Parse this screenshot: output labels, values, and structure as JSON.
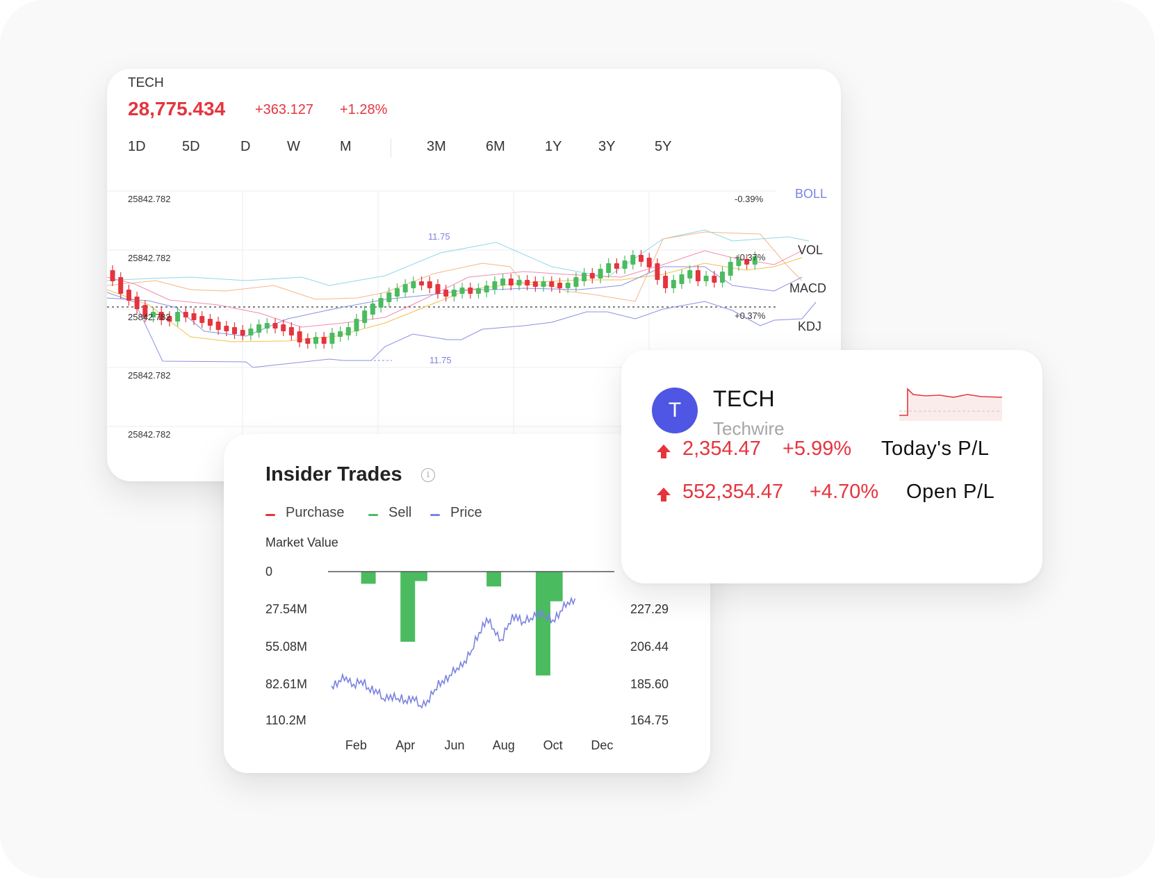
{
  "colors": {
    "up": "#e5343d",
    "down": "#4bbb5f",
    "accent": "#4f56e3",
    "price_line": "#7b82e0"
  },
  "chart": {
    "symbol": "TECH",
    "price": "28,775.434",
    "change": "+363.127",
    "change_pct": "+1.28%",
    "ranges_left": [
      "1D",
      "5D",
      "D",
      "W",
      "M"
    ],
    "ranges_right": [
      "3M",
      "6M",
      "1Y",
      "3Y",
      "5Y"
    ],
    "y_labels": [
      "25842.782",
      "25842.782",
      "25842.782",
      "25842.782",
      "25842.782"
    ],
    "right_labels": [
      "-0.39%",
      "+0.37%",
      "+0.37%"
    ],
    "annotation_high": "11.75",
    "annotation_low": "11.75",
    "indicators": [
      "BOLL",
      "VOL",
      "MACD",
      "KDJ"
    ]
  },
  "insider": {
    "title": "Insider Trades",
    "info_icon": "info-icon",
    "legend": [
      {
        "label": "Purchase",
        "color": "#e5343d"
      },
      {
        "label": "Sell",
        "color": "#4bbb5f"
      },
      {
        "label": "Price",
        "color": "#7b82e0"
      }
    ],
    "y_axis_title": "Market Value"
  },
  "chart_data": {
    "type": "bar",
    "y_left_ticks": [
      "0",
      "27.54M",
      "55.08M",
      "82.61M",
      "110.2M"
    ],
    "y_right_ticks": [
      "",
      "227.29",
      "206.44",
      "185.60",
      "164.75"
    ],
    "x_ticks": [
      "Feb",
      "Apr",
      "Jun",
      "Aug",
      "Oct",
      "Dec"
    ],
    "ylim_left": [
      0,
      110.2
    ],
    "ylim_right": [
      164.75,
      248.13
    ],
    "series": [
      {
        "name": "Sell",
        "type": "bar",
        "month_positions": [
          1.5,
          3.1,
          3.6,
          6.6,
          8.6,
          9.1
        ],
        "values": [
          9,
          52,
          7,
          11,
          77,
          22
        ]
      },
      {
        "name": "Price",
        "type": "line",
        "months": [
          0.0,
          0.3,
          0.6,
          0.9,
          1.2,
          1.5,
          1.8,
          2.1,
          2.4,
          2.7,
          3.0,
          3.3,
          3.6,
          3.9,
          4.2,
          4.5,
          4.8,
          5.1,
          5.4,
          5.7,
          6.0,
          6.3,
          6.6,
          6.9,
          7.2,
          7.5,
          7.8,
          8.1,
          8.4,
          8.7,
          9.0,
          9.3,
          9.6,
          9.9
        ],
        "values": [
          184,
          187,
          189,
          185,
          187,
          183,
          182,
          177,
          179,
          177,
          176,
          178,
          173,
          176,
          182,
          187,
          190,
          194,
          198,
          204,
          214,
          222,
          216,
          210,
          219,
          224,
          220,
          222,
          226,
          223,
          221,
          226,
          231,
          233
        ]
      }
    ]
  },
  "position": {
    "avatar_letter": "T",
    "ticker": "TECH",
    "company": "Techwire",
    "rows": [
      {
        "value": "2,354.47",
        "pct": "+5.99%",
        "label": "Today's P/L"
      },
      {
        "value": "552,354.47",
        "pct": "+4.70%",
        "label": "Open P/L"
      }
    ]
  }
}
